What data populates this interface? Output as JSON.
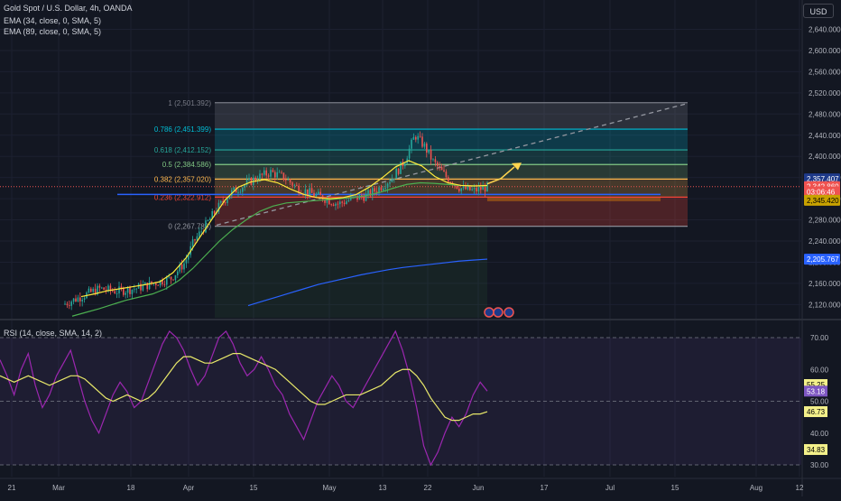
{
  "header": {
    "symbol": "Gold Spot / U.S. Dollar, 4h, OANDA",
    "ema1": "EMA (34, close, 0, SMA, 5)",
    "ema2": "EMA (89, close, 0, SMA, 5)",
    "currency_button": "USD"
  },
  "colors": {
    "background": "#131722",
    "bull": "#26a69a",
    "bear": "#ef5350",
    "ema34": "#ffeb3b",
    "ema89": "#4caf50",
    "ema_long": "#2962ff",
    "rsi": "#9c27b0",
    "rsi_ma": "#e8e86a",
    "projection": "#ffd54f"
  },
  "chart_data": [
    {
      "type": "candlestick",
      "x_ticks": [
        "21",
        "Mar",
        "18",
        "Apr",
        "15",
        "May",
        "13",
        "22",
        "Jun",
        "17",
        "Jul",
        "15",
        "Aug",
        "12"
      ],
      "y_ticks": [
        2120,
        2160,
        2200,
        2240,
        2280,
        2320,
        2360,
        2400,
        2440,
        2480,
        2520,
        2560,
        2600,
        2640
      ],
      "y_tick_labels": [
        "2,120.000",
        "2,160.000",
        "2,200.000",
        "2,240.000",
        "2,280.000",
        "2,320.000",
        "2,360.000",
        "2,400.000",
        "2,440.000",
        "2,480.000",
        "2,520.000",
        "2,560.000",
        "2,600.000",
        "2,640.000"
      ],
      "ylim": [
        2095,
        2675
      ],
      "fibonacci": [
        {
          "level": 1,
          "price": 2501.392,
          "label": "1 (2,501.392)",
          "color": "#787b86"
        },
        {
          "level": 0.786,
          "price": 2451.399,
          "label": "0.786 (2,451.399)",
          "color": "#00bcd4"
        },
        {
          "level": 0.618,
          "price": 2412.152,
          "label": "0.618 (2,412.152)",
          "color": "#26a69a"
        },
        {
          "level": 0.5,
          "price": 2384.586,
          "label": "0.5 (2,384.586)",
          "color": "#81c784"
        },
        {
          "level": 0.382,
          "price": 2357.02,
          "label": "0.382 (2,357.020)",
          "color": "#ffb74d"
        },
        {
          "level": 0.236,
          "price": 2322.912,
          "label": "0.236 (2,322.912)",
          "color": "#f44336"
        },
        {
          "level": 0,
          "price": 2267.789,
          "label": "0 (2,267.789)",
          "color": "#9598a1"
        }
      ],
      "price_labels": [
        {
          "text": "2,357.407",
          "bg": "#1e3a8a",
          "fg": "#ffffff",
          "price": 2357.4
        },
        {
          "text": "2,342.860",
          "bg": "#ef5350",
          "fg": "#ffffff",
          "price": 2342.86
        },
        {
          "text": "03:06:46",
          "bg": "#ef5350",
          "fg": "#ffffff",
          "price": 2333
        },
        {
          "text": "2,345.420",
          "bg": "#c8a200",
          "fg": "#000000",
          "price": 2317
        },
        {
          "text": "2,205.767",
          "bg": "#2962ff",
          "fg": "#ffffff",
          "price": 2205.77
        }
      ],
      "ema34": [
        2135,
        2140,
        2146,
        2150,
        2154,
        2158,
        2163,
        2180,
        2208,
        2245,
        2282,
        2318,
        2342,
        2352,
        2356,
        2350,
        2338,
        2328,
        2322,
        2320,
        2322,
        2328,
        2342,
        2360,
        2380,
        2392,
        2382,
        2362,
        2350,
        2345,
        2344,
        2345
      ],
      "ema89": [
        2098,
        2105,
        2112,
        2120,
        2128,
        2134,
        2140,
        2150,
        2166,
        2188,
        2214,
        2240,
        2262,
        2280,
        2296,
        2306,
        2312,
        2314,
        2316,
        2318,
        2320,
        2322,
        2326,
        2332,
        2340,
        2347,
        2350,
        2349,
        2347,
        2345,
        2344,
        2344
      ],
      "ema_long": [
        2118,
        2126,
        2134,
        2142,
        2150,
        2158,
        2164,
        2170,
        2176,
        2181,
        2186,
        2190,
        2193,
        2196,
        2199,
        2202,
        2204,
        2205.77
      ]
    },
    {
      "type": "line",
      "title": "RSI (14, close, SMA, 14, 2)",
      "y_ticks": [
        30,
        40,
        50,
        60,
        70
      ],
      "y_tick_labels": [
        "30.00",
        "40.00",
        "50.00",
        "60.00",
        "70.00"
      ],
      "ylim": [
        27,
        77
      ],
      "bands": [
        30,
        50,
        70
      ],
      "rsi": [
        63,
        58,
        52,
        60,
        65,
        55,
        48,
        52,
        58,
        62,
        66,
        58,
        50,
        44,
        40,
        46,
        52,
        56,
        53,
        48,
        50,
        56,
        62,
        68,
        72,
        70,
        66,
        60,
        55,
        58,
        64,
        70,
        72,
        68,
        62,
        58,
        60,
        64,
        60,
        55,
        52,
        46,
        42,
        38,
        44,
        50,
        54,
        58,
        55,
        50,
        48,
        52,
        56,
        60,
        64,
        68,
        72,
        66,
        58,
        48,
        36,
        30,
        34,
        40,
        45,
        42,
        46,
        52,
        56,
        53.18
      ],
      "rsi_ma": [
        58,
        57,
        56,
        57,
        58,
        57,
        56,
        55,
        56,
        57,
        58,
        58,
        57,
        55,
        53,
        51,
        50,
        51,
        52,
        51,
        50,
        51,
        53,
        56,
        59,
        62,
        64,
        64,
        63,
        62,
        62,
        63,
        64,
        65,
        65,
        64,
        63,
        62,
        61,
        60,
        58,
        56,
        54,
        52,
        50,
        49,
        49,
        50,
        51,
        52,
        52,
        52,
        53,
        54,
        55,
        57,
        59,
        60,
        60,
        58,
        55,
        51,
        48,
        45,
        44,
        44,
        45,
        46,
        46,
        46.73
      ],
      "value_labels": [
        {
          "text": "55.25",
          "bg": "#f3f08a",
          "fg": "#000000",
          "value": 55.25
        },
        {
          "text": "53.18",
          "bg": "#7e57c2",
          "fg": "#ffffff",
          "value": 53.18
        },
        {
          "text": "46.73",
          "bg": "#f3f08a",
          "fg": "#000000",
          "value": 46.73
        },
        {
          "text": "34.83",
          "bg": "#f3f08a",
          "fg": "#000000",
          "value": 34.83
        }
      ]
    }
  ]
}
